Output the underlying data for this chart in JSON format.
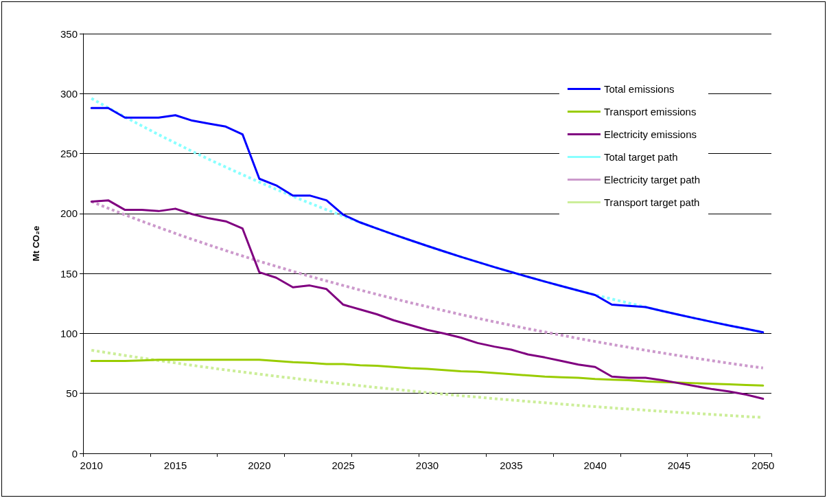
{
  "chart_data": {
    "type": "line",
    "ylabel": "Mt CO₂e",
    "categories": [
      "2010",
      null,
      null,
      null,
      null,
      "2015",
      null,
      null,
      null,
      null,
      "2020",
      null,
      null,
      null,
      null,
      "2025",
      null,
      null,
      null,
      null,
      "2030",
      null,
      null,
      null,
      null,
      "2035",
      null,
      null,
      null,
      null,
      "2040",
      null,
      null,
      null,
      null,
      "2045",
      null,
      null,
      null,
      null,
      "2050"
    ],
    "ylim": [
      0,
      350
    ],
    "yticks": [
      0,
      50,
      100,
      150,
      200,
      250,
      300,
      350
    ],
    "grid": "y",
    "legend": "top right",
    "marker": "none",
    "series": [
      {
        "name": "Total emissions",
        "color": "#0000ff",
        "line_style": "solid",
        "values": [
          288,
          288,
          280,
          280,
          280,
          282,
          277.5,
          275,
          272.5,
          266,
          229,
          223.5,
          215,
          215,
          211,
          199,
          192.6,
          187.5,
          182.5,
          177.7,
          173,
          168.4,
          163.9,
          159.6,
          155.3,
          151.2,
          147.2,
          143.3,
          139.5,
          135.8,
          132,
          124,
          123,
          122,
          118.7,
          115.6,
          112.5,
          109.5,
          106.6,
          103.8,
          101
        ]
      },
      {
        "name": "Transport emissions",
        "color": "#99cc00",
        "line_style": "solid",
        "values": [
          77,
          77,
          77,
          77.5,
          78,
          78,
          78,
          78,
          78,
          78,
          78,
          77,
          76,
          75.5,
          74.5,
          74.5,
          73.5,
          73,
          72,
          71,
          70.5,
          69.5,
          68.5,
          68,
          67,
          66,
          65,
          64,
          63.5,
          63,
          62,
          61.5,
          61,
          60,
          59.5,
          59,
          58.5,
          58,
          57.5,
          57,
          56.5
        ]
      },
      {
        "name": "Electricity emissions",
        "color": "#800080",
        "line_style": "solid",
        "values": [
          210,
          211,
          203,
          203,
          202,
          204,
          199.5,
          196,
          193.5,
          187.5,
          151,
          146.5,
          138.5,
          140,
          137,
          124,
          120,
          116,
          111,
          107,
          103,
          100,
          96.5,
          92,
          89,
          86.5,
          82.5,
          80,
          77,
          74,
          72,
          64,
          63,
          63,
          61,
          58.5,
          56,
          53.5,
          51.5,
          49,
          45.5
        ]
      },
      {
        "name": "Total target path",
        "color": "#88ffff",
        "line_style": "dotted",
        "values": [
          296,
          288.2,
          280.5,
          273.1,
          265.8,
          258.8,
          251.9,
          245.2,
          238.7,
          232.4,
          226.2,
          220.2,
          214.4,
          208.7,
          203.2,
          197.8,
          192.6,
          187.5,
          182.5,
          177.7,
          173,
          168.4,
          163.9,
          159.6,
          155.3,
          151.2,
          147.2,
          143.3,
          139.5,
          135.8,
          132.2,
          128.7,
          125.3,
          122,
          118.7,
          115.6,
          112.5,
          109.5,
          106.6,
          103.8,
          101
        ]
      },
      {
        "name": "Electricity target path",
        "color": "#cc99cc",
        "line_style": "dotted",
        "values": [
          210,
          204.4,
          198.9,
          193.6,
          188.5,
          183.4,
          178.5,
          173.8,
          169.1,
          164.6,
          160.2,
          156,
          151.8,
          147.7,
          143.8,
          140,
          136.2,
          132.6,
          129.1,
          125.6,
          122.3,
          119,
          115.8,
          112.7,
          109.7,
          106.8,
          103.9,
          101.2,
          98.5,
          95.8,
          93.3,
          90.8,
          88.4,
          86,
          83.7,
          81.5,
          79.3,
          77.2,
          75.1,
          73.1,
          71.2
        ]
      },
      {
        "name": "Transport target path",
        "color": "#ccee99",
        "line_style": "dotted",
        "values": [
          86,
          83.8,
          81.6,
          79.5,
          77.4,
          75.4,
          73.4,
          71.5,
          69.6,
          67.8,
          66.1,
          64.3,
          62.7,
          61,
          59.4,
          57.9,
          56.4,
          54.9,
          53.5,
          52.1,
          50.7,
          49.4,
          48.1,
          46.9,
          45.6,
          44.5,
          43.3,
          42.2,
          41.1,
          40,
          39,
          37.9,
          37,
          36,
          35.1,
          34.1,
          33.3,
          32.4,
          31.5,
          30.7,
          29.9
        ]
      }
    ]
  }
}
